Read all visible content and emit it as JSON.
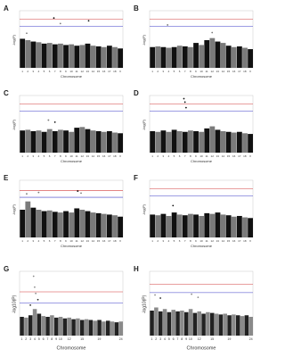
{
  "chart_data": [
    {
      "type": "manhattan",
      "label": "A",
      "ylabel": "-log(P)",
      "xlabel": "Chromosome",
      "categories": [
        "1",
        "2",
        "3",
        "4",
        "5",
        "6",
        "7",
        "8",
        "9",
        "10",
        "11",
        "12",
        "13",
        "14",
        "15",
        "16",
        "17",
        "18",
        "X"
      ],
      "values": [
        4.2,
        4.0,
        3.8,
        3.7,
        3.5,
        3.6,
        3.4,
        3.5,
        3.3,
        3.4,
        3.2,
        3.3,
        3.5,
        3.2,
        3.1,
        3.0,
        3.2,
        3.0,
        2.8
      ],
      "colors": [
        "#111111",
        "#7a7a7a"
      ],
      "ylim": [
        0,
        8
      ],
      "thresholds": [
        {
          "value": 7.0,
          "color": "#d23c3c"
        },
        {
          "value": 6.0,
          "color": "#3c3cc8"
        }
      ],
      "peaks": {
        "chromosome": [
          "7",
          "8",
          "13",
          "2"
        ],
        "values": [
          7.2,
          6.4,
          6.8,
          5.0
        ]
      }
    },
    {
      "type": "manhattan",
      "label": "B",
      "ylabel": "-log(P)",
      "xlabel": "Chromosome",
      "categories": [
        "1",
        "2",
        "3",
        "4",
        "5",
        "6",
        "7",
        "8",
        "9",
        "10",
        "11",
        "12",
        "13",
        "14",
        "15",
        "16",
        "17",
        "18",
        "X"
      ],
      "values": [
        3.0,
        3.1,
        3.0,
        2.9,
        3.0,
        3.2,
        3.1,
        3.0,
        3.6,
        3.3,
        4.0,
        4.3,
        3.8,
        3.6,
        3.2,
        3.0,
        3.1,
        2.9,
        2.7
      ],
      "colors": [
        "#111111",
        "#7a7a7a"
      ],
      "ylim": [
        0,
        8
      ],
      "thresholds": [
        {
          "value": 7.0,
          "color": "#d23c3c"
        },
        {
          "value": 6.0,
          "color": "#3c3cc8"
        }
      ],
      "peaks": {
        "chromosome": [
          "4",
          "12"
        ],
        "values": [
          6.2,
          5.1
        ]
      }
    },
    {
      "type": "manhattan",
      "label": "C",
      "ylabel": "-log(P)",
      "xlabel": "Chromosome",
      "categories": [
        "1",
        "2",
        "3",
        "4",
        "5",
        "6",
        "7",
        "8",
        "9",
        "10",
        "11",
        "12",
        "13",
        "14",
        "15",
        "16",
        "17",
        "18",
        "X"
      ],
      "values": [
        3.2,
        3.3,
        3.1,
        3.2,
        3.0,
        3.4,
        3.1,
        3.3,
        3.2,
        3.0,
        3.6,
        3.7,
        3.4,
        3.2,
        3.1,
        3.0,
        3.1,
        2.9,
        2.8
      ],
      "colors": [
        "#111111",
        "#7a7a7a"
      ],
      "ylim": [
        0,
        8
      ],
      "thresholds": [
        {
          "value": 7.0,
          "color": "#d23c3c"
        },
        {
          "value": 6.0,
          "color": "#3c3cc8"
        }
      ],
      "peaks": {
        "chromosome": [
          "6",
          "7"
        ],
        "values": [
          4.7,
          4.4
        ]
      }
    },
    {
      "type": "manhattan",
      "label": "D",
      "ylabel": "-log(P)",
      "xlabel": "Chromosome",
      "categories": [
        "1",
        "2",
        "3",
        "4",
        "5",
        "6",
        "7",
        "8",
        "9",
        "10",
        "11",
        "12",
        "13",
        "14",
        "15",
        "16",
        "17",
        "18",
        "X"
      ],
      "values": [
        3.1,
        3.0,
        3.2,
        3.0,
        3.3,
        3.1,
        3.0,
        3.2,
        3.1,
        3.0,
        3.5,
        3.8,
        3.3,
        3.1,
        3.0,
        2.9,
        3.0,
        2.8,
        2.7
      ],
      "colors": [
        "#111111",
        "#7a7a7a"
      ],
      "ylim": [
        0,
        8
      ],
      "thresholds": [
        {
          "value": 7.0,
          "color": "#d23c3c"
        },
        {
          "value": 6.0,
          "color": "#3c3cc8"
        }
      ],
      "peaks": {
        "chromosome": [
          "7",
          "7",
          "7"
        ],
        "values": [
          7.8,
          7.3,
          6.5
        ]
      }
    },
    {
      "type": "manhattan",
      "label": "E",
      "ylabel": "-log(P)",
      "xlabel": "Chromosome",
      "categories": [
        "1",
        "2",
        "3",
        "4",
        "5",
        "6",
        "7",
        "8",
        "9",
        "10",
        "11",
        "12",
        "13",
        "14",
        "15",
        "16",
        "17",
        "18",
        "X"
      ],
      "values": [
        4.0,
        5.2,
        4.3,
        4.0,
        3.8,
        3.9,
        3.7,
        3.6,
        3.8,
        3.6,
        4.2,
        4.0,
        3.8,
        3.6,
        3.5,
        3.4,
        3.3,
        3.2,
        3.0
      ],
      "colors": [
        "#111111",
        "#7a7a7a"
      ],
      "ylim": [
        0,
        8
      ],
      "thresholds": [
        {
          "value": 6.8,
          "color": "#d23c3c"
        },
        {
          "value": 5.8,
          "color": "#3c3cc8"
        }
      ],
      "peaks": {
        "chromosome": [
          "2",
          "4",
          "11",
          "12"
        ],
        "values": [
          6.3,
          6.5,
          6.7,
          6.4
        ]
      }
    },
    {
      "type": "manhattan",
      "label": "F",
      "ylabel": "-log(P)",
      "xlabel": "Chromosome",
      "categories": [
        "1",
        "2",
        "3",
        "4",
        "5",
        "6",
        "7",
        "8",
        "9",
        "10",
        "11",
        "12",
        "13",
        "14",
        "15",
        "16",
        "17",
        "18",
        "X"
      ],
      "values": [
        3.3,
        3.2,
        3.4,
        3.1,
        3.6,
        3.3,
        3.2,
        3.4,
        3.3,
        3.1,
        3.5,
        3.4,
        3.6,
        3.3,
        3.2,
        3.0,
        3.1,
        2.9,
        2.8
      ],
      "colors": [
        "#111111",
        "#7a7a7a"
      ],
      "ylim": [
        0,
        8
      ],
      "thresholds": [
        {
          "value": 7.0,
          "color": "#d23c3c"
        },
        {
          "value": 6.0,
          "color": "#3c3cc8"
        }
      ],
      "peaks": {
        "chromosome": [
          "5"
        ],
        "values": [
          4.6
        ]
      }
    },
    {
      "type": "manhattan",
      "label": "G",
      "ylabel": "-log10(P)",
      "xlabel": "Chromosome",
      "categories": [
        "1",
        "2",
        "3",
        "4",
        "5",
        "6",
        "7",
        "8",
        "9",
        "10",
        null,
        "12",
        null,
        null,
        "15",
        null,
        null,
        null,
        "19",
        null,
        null,
        null,
        null,
        "24"
      ],
      "values": [
        2.4,
        2.3,
        2.6,
        3.4,
        2.8,
        2.5,
        2.4,
        2.6,
        2.3,
        2.4,
        2.2,
        2.3,
        2.1,
        2.2,
        2.0,
        2.1,
        2.0,
        1.9,
        2.0,
        1.8,
        1.9,
        1.8,
        1.7,
        1.8
      ],
      "colors": [
        "#222222",
        "#8a8a8a"
      ],
      "ylim": [
        0,
        8
      ],
      "thresholds": [
        {
          "value": 5.6,
          "color": "#d23c3c"
        },
        {
          "value": 4.2,
          "color": "#3c3cc8"
        }
      ],
      "peaks": {
        "chromosome": [
          "4",
          "4",
          "4",
          "5",
          "3"
        ],
        "values": [
          7.6,
          6.2,
          5.4,
          4.6,
          3.9
        ]
      }
    },
    {
      "type": "manhattan",
      "label": "H",
      "ylabel": "-log10(P)",
      "xlabel": "Chromosome",
      "categories": [
        "1",
        "2",
        "3",
        "4",
        "5",
        "6",
        "7",
        "8",
        "9",
        "10",
        null,
        "12",
        null,
        null,
        "15",
        null,
        null,
        null,
        "19",
        null,
        null,
        null,
        null,
        "24"
      ],
      "values": [
        3.2,
        3.6,
        3.1,
        3.4,
        3.0,
        3.3,
        3.1,
        3.2,
        3.0,
        3.4,
        2.9,
        3.1,
        2.8,
        3.0,
        2.9,
        2.8,
        2.7,
        2.8,
        2.6,
        2.7,
        2.6,
        2.5,
        2.6,
        2.4
      ],
      "colors": [
        "#222222",
        "#8a8a8a"
      ],
      "ylim": [
        0,
        8
      ],
      "thresholds": [
        {
          "value": 6.6,
          "color": "#d23c3c"
        },
        {
          "value": 5.5,
          "color": "#3c3cc8"
        }
      ],
      "peaks": {
        "chromosome": [
          "2",
          "3",
          "10",
          "12"
        ],
        "values": [
          5.2,
          4.8,
          5.3,
          4.9
        ]
      }
    }
  ]
}
